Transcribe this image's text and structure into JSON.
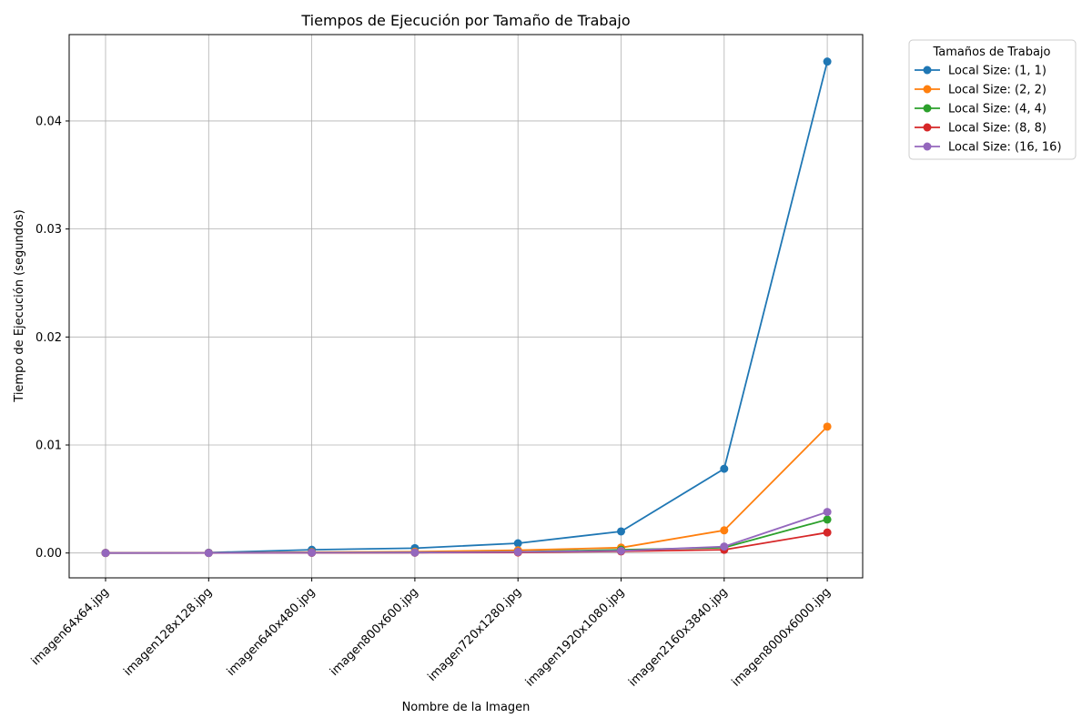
{
  "chart_data": {
    "type": "line",
    "title": "Tiempos de Ejecución por Tamaño de Trabajo",
    "xlabel": "Nombre de la Imagen",
    "ylabel": "Tiempo de Ejecución (segundos)",
    "categories": [
      "imagen64x64.jpg",
      "imagen128x128.jpg",
      "imagen640x480.jpg",
      "imagen800x600.jpg",
      "imagen720x1280.jpg",
      "imagen1920x1080.jpg",
      "imagen2160x3840.jpg",
      "imagen8000x6000.jpg"
    ],
    "ylim": [
      -0.0023,
      0.048
    ],
    "yticks": [
      0.0,
      0.01,
      0.02,
      0.03,
      0.04
    ],
    "ytick_labels": [
      "0.00",
      "0.01",
      "0.02",
      "0.03",
      "0.04"
    ],
    "grid": true,
    "legend": {
      "title": "Tamaños de Trabajo",
      "placement": "outside-top-right"
    },
    "series": [
      {
        "name": "Local Size: (1, 1)",
        "color": "#1f77b4",
        "values": [
          1e-05,
          3e-05,
          0.0003,
          0.00045,
          0.0009,
          0.002,
          0.0078,
          0.0455
        ]
      },
      {
        "name": "Local Size: (2, 2)",
        "color": "#ff7f0e",
        "values": [
          5e-06,
          1e-05,
          8e-05,
          0.00012,
          0.00025,
          0.0005,
          0.0021,
          0.0117
        ]
      },
      {
        "name": "Local Size: (4, 4)",
        "color": "#2ca02c",
        "values": [
          3e-06,
          5e-06,
          3e-05,
          4e-05,
          0.0001,
          0.0003,
          0.0005,
          0.0031
        ]
      },
      {
        "name": "Local Size: (8, 8)",
        "color": "#d62728",
        "values": [
          2e-06,
          4e-06,
          2e-05,
          3e-05,
          5e-05,
          0.00015,
          0.0003,
          0.0019
        ]
      },
      {
        "name": "Local Size: (16, 16)",
        "color": "#9467bd",
        "values": [
          3e-06,
          5e-06,
          3e-05,
          4e-05,
          0.0001,
          0.0002,
          0.0006,
          0.0038
        ]
      }
    ]
  }
}
